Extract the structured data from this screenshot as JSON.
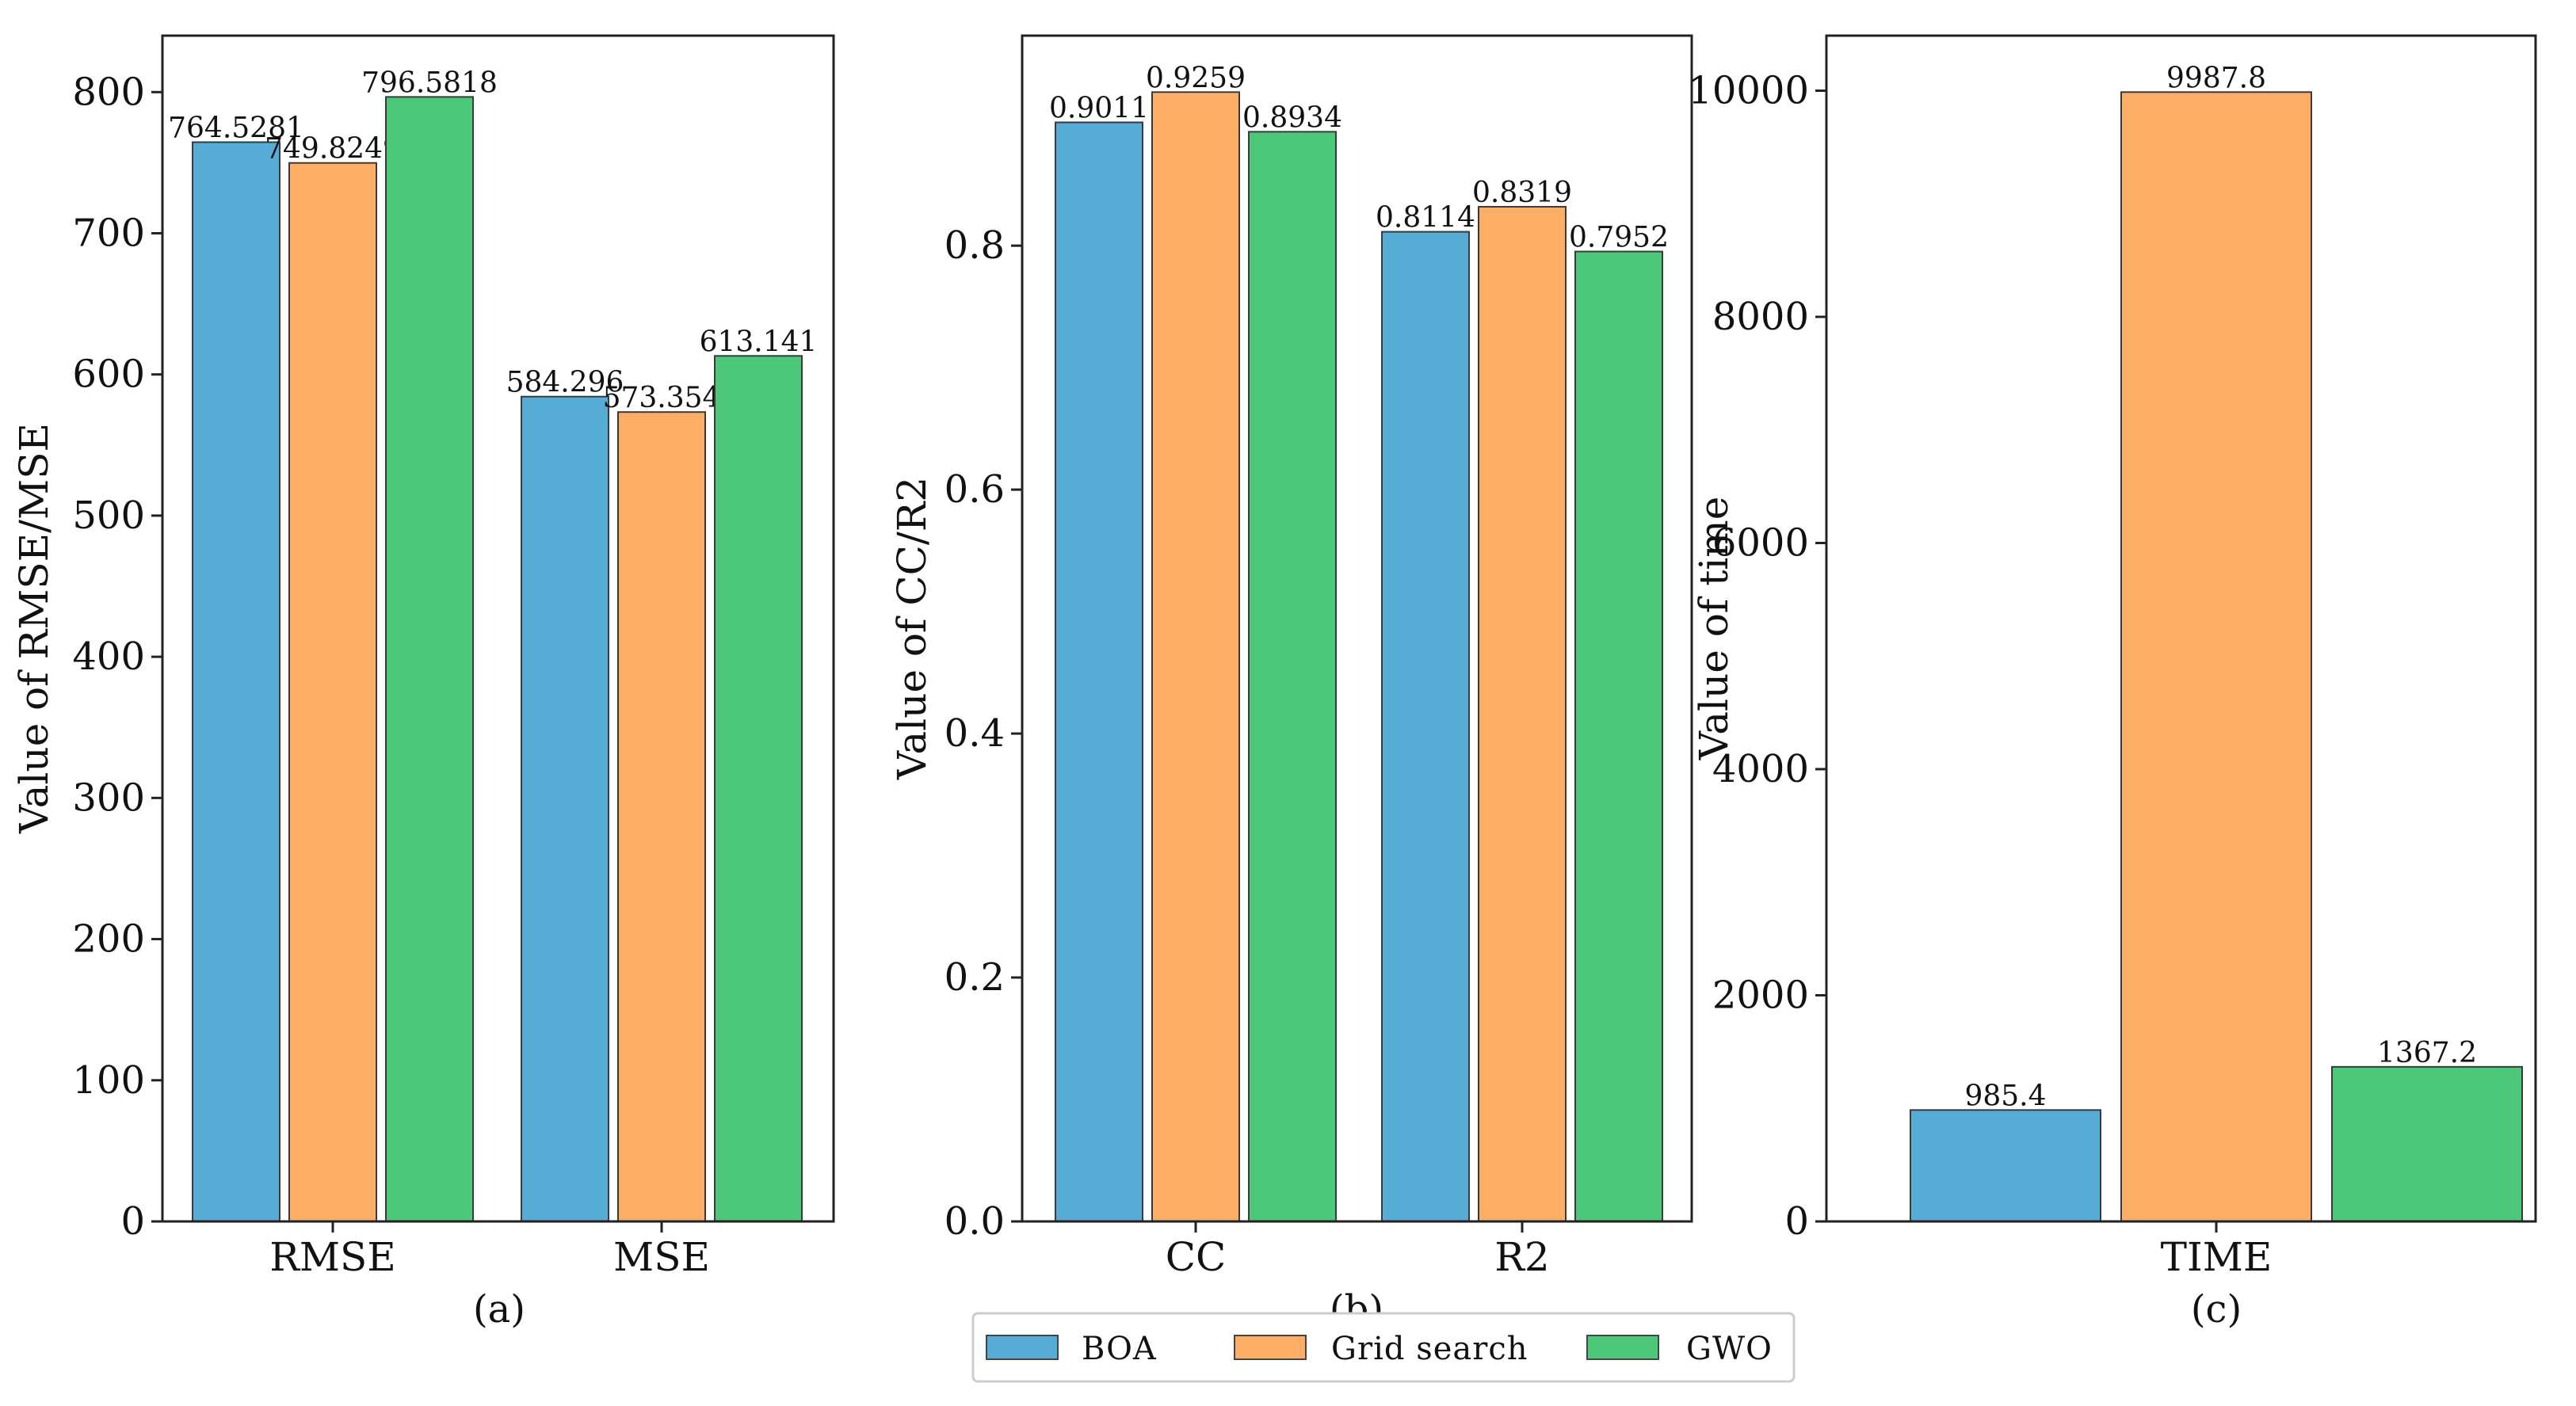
{
  "colors": {
    "BOA": "#56acd5",
    "Grid search": "#fdae66",
    "GWO": "#4dc77a"
  },
  "legend": {
    "entries": [
      "BOA",
      "Grid search",
      "GWO"
    ],
    "placement": "bottom-center"
  },
  "chart_data": [
    {
      "type": "bar",
      "panel_label": "(a)",
      "ylabel": "Value of RMSE/MSE",
      "categories": [
        "RMSE",
        "MSE"
      ],
      "ylim": [
        0,
        840
      ],
      "yticks": [
        "0",
        "100",
        "200",
        "300",
        "400",
        "500",
        "600",
        "700",
        "800"
      ],
      "ytick_values": [
        0,
        100,
        200,
        300,
        400,
        500,
        600,
        700,
        800
      ],
      "series": [
        {
          "name": "BOA",
          "values": [
            764.5281,
            584.296
          ],
          "labels": [
            "764.5281",
            "584.296"
          ]
        },
        {
          "name": "Grid search",
          "values": [
            749.8249,
            573.354
          ],
          "labels": [
            "749.8249",
            "573.354"
          ]
        },
        {
          "name": "GWO",
          "values": [
            796.5818,
            613.141
          ],
          "labels": [
            "796.5818",
            "613.141"
          ]
        }
      ],
      "grid": false
    },
    {
      "type": "bar",
      "panel_label": "(b)",
      "ylabel": "Value of CC/R2",
      "categories": [
        "CC",
        "R2"
      ],
      "ylim": [
        0,
        0.9722
      ],
      "yticks": [
        "0.0",
        "0.2",
        "0.4",
        "0.6",
        "0.8"
      ],
      "ytick_values": [
        0,
        0.2,
        0.4,
        0.6,
        0.8
      ],
      "series": [
        {
          "name": "BOA",
          "values": [
            0.9011,
            0.8114
          ],
          "labels": [
            "0.9011",
            "0.8114"
          ]
        },
        {
          "name": "Grid search",
          "values": [
            0.9259,
            0.8319
          ],
          "labels": [
            "0.9259",
            "0.8319"
          ]
        },
        {
          "name": "GWO",
          "values": [
            0.8934,
            0.7952
          ],
          "labels": [
            "0.8934",
            "0.7952"
          ]
        }
      ],
      "grid": false
    },
    {
      "type": "bar",
      "panel_label": "(c)",
      "ylabel": "Value of time",
      "categories": [
        "TIME"
      ],
      "ylim": [
        0,
        10487
      ],
      "yticks": [
        "0",
        "2000",
        "4000",
        "6000",
        "8000",
        "10000"
      ],
      "ytick_values": [
        0,
        2000,
        4000,
        6000,
        8000,
        10000
      ],
      "series": [
        {
          "name": "BOA",
          "values": [
            985.4
          ],
          "labels": [
            "985.4"
          ]
        },
        {
          "name": "Grid search",
          "values": [
            9987.8
          ],
          "labels": [
            "9987.8"
          ]
        },
        {
          "name": "GWO",
          "values": [
            1367.2
          ],
          "labels": [
            "1367.2"
          ]
        }
      ],
      "grid": false
    }
  ]
}
